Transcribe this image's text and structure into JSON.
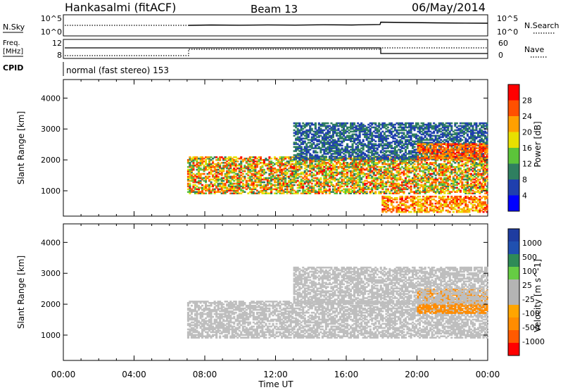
{
  "header": {
    "station": "Hankasalmi (fitACF)",
    "beam": "Beam 13",
    "date": "06/May/2014"
  },
  "top_panels": {
    "nsky_label": "N.Sky",
    "nsearch_label": "N.Search",
    "noise_ticks": [
      "10^5",
      "10^0"
    ],
    "freq_label": "Freq.",
    "freq_unit": "[MHz]",
    "freq_ticks": [
      "12",
      "8"
    ],
    "nave_label": "Nave",
    "nave_ticks": [
      "60",
      "0"
    ],
    "cpid_label": "CPID",
    "cpid_text": "normal (fast stereo) 153"
  },
  "colors": {
    "power_scale": [
      "#0000ff",
      "#1f3fae",
      "#2f7f60",
      "#5cc43a",
      "#e8e000",
      "#ffa000",
      "#ff5000",
      "#ff0000"
    ],
    "velocity_scale": [
      "#ff0000",
      "#ff5a00",
      "#ff8c00",
      "#ffa500",
      "#b4b4b4",
      "#b4b4b4",
      "#66cc44",
      "#2e8b57",
      "#2050b0",
      "#1e3ca0"
    ],
    "velocity_main": "#bebebe"
  },
  "chart_data": [
    {
      "type": "heatmap",
      "title": "Power",
      "xlabel": "",
      "ylabel": "Slant Range [km]",
      "colorbar_label": "Power [dB]",
      "colorbar_ticks": [
        "4",
        "8",
        "12",
        "16",
        "20",
        "24",
        "28"
      ],
      "colorbar_range": [
        0,
        32
      ],
      "x_ticks": [
        "00:00",
        "04:00",
        "08:00",
        "12:00",
        "16:00",
        "20:00",
        "00:00"
      ],
      "xlim_hours": [
        0,
        24
      ],
      "y_ticks": [
        "1000",
        "2000",
        "3000",
        "4000"
      ],
      "ylim_km": [
        180,
        4600
      ],
      "echo_regions": [
        {
          "t_start": 7.0,
          "t_end": 24.0,
          "range_km": [
            900,
            2100
          ],
          "power_db": [
            8,
            30
          ]
        },
        {
          "t_start": 18.0,
          "t_end": 24.0,
          "range_km": [
            300,
            800
          ],
          "power_db": [
            16,
            30
          ]
        },
        {
          "t_start": 13.0,
          "t_end": 24.0,
          "range_km": [
            2000,
            3200
          ],
          "power_db": [
            4,
            12
          ]
        },
        {
          "t_start": 20.0,
          "t_end": 24.0,
          "range_km": [
            2000,
            2500
          ],
          "power_db": [
            20,
            30
          ]
        }
      ]
    },
    {
      "type": "heatmap",
      "title": "Velocity",
      "xlabel": "Time UT",
      "ylabel": "Slant Range [km]",
      "colorbar_label": "Velocity [m s^-1]",
      "colorbar_ticks": [
        "-1000",
        "-500",
        "-100",
        "-25",
        "25",
        "100",
        "500",
        "1000"
      ],
      "colorbar_range": [
        -1500,
        1500
      ],
      "x_ticks": [
        "00:00",
        "04:00",
        "08:00",
        "12:00",
        "16:00",
        "20:00",
        "00:00"
      ],
      "xlim_hours": [
        0,
        24
      ],
      "y_ticks": [
        "1000",
        "2000",
        "3000",
        "4000"
      ],
      "ylim_km": [
        180,
        4600
      ],
      "echo_regions": [
        {
          "t_start": 7.0,
          "t_end": 24.0,
          "range_km": [
            900,
            2100
          ],
          "velocity_ms": [
            -25,
            25
          ]
        },
        {
          "t_start": 20.0,
          "t_end": 24.0,
          "range_km": [
            1700,
            2500
          ],
          "velocity_ms": [
            -500,
            -100
          ]
        },
        {
          "t_start": 13.0,
          "t_end": 24.0,
          "range_km": [
            2000,
            3200
          ],
          "velocity_ms": [
            -25,
            25
          ]
        }
      ]
    }
  ]
}
